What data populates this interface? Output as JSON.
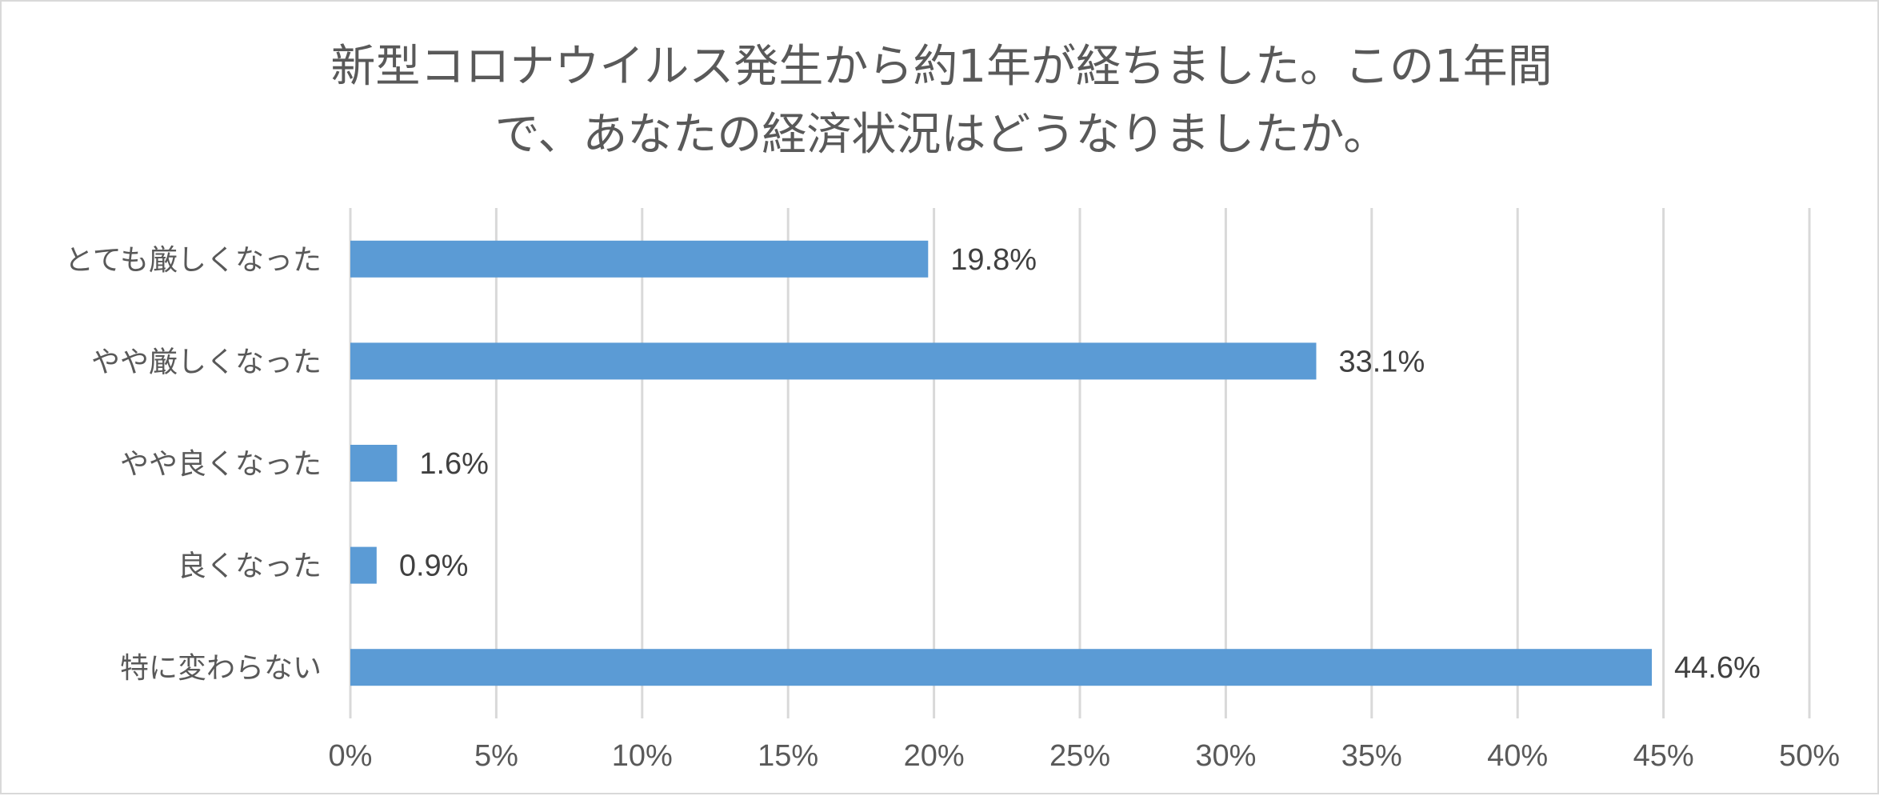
{
  "chart_data": {
    "type": "bar",
    "orientation": "horizontal",
    "title_lines": [
      "新型コロナウイルス発生から約1年が経ちました。この1年間",
      "で、あなたの経済状況はどうなりましたか。"
    ],
    "categories": [
      "とても厳しくなった",
      "やや厳しくなった",
      "やや良くなった",
      "良くなった",
      "特に変わらない"
    ],
    "values": [
      19.8,
      33.1,
      1.6,
      0.9,
      44.6
    ],
    "data_labels": [
      "19.8%",
      "33.1%",
      "1.6%",
      "0.9%",
      "44.6%"
    ],
    "xlim": [
      0,
      50
    ],
    "x_ticks": [
      0,
      5,
      10,
      15,
      20,
      25,
      30,
      35,
      40,
      45,
      50
    ],
    "x_tick_labels": [
      "0%",
      "5%",
      "10%",
      "15%",
      "20%",
      "25%",
      "30%",
      "35%",
      "40%",
      "45%",
      "50%"
    ],
    "grid": true,
    "legend": "none",
    "bar_color": "#5b9bd5"
  }
}
